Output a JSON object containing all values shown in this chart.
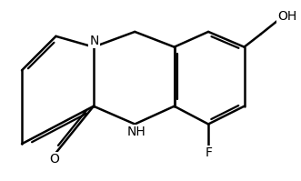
{
  "bg_color": "#ffffff",
  "line_color": "#000000",
  "line_width": 1.8,
  "font_size": 10,
  "figsize": [
    3.31,
    1.99
  ],
  "dpi": 100,
  "atoms": {
    "N": "N",
    "NH": "NH",
    "O": "O",
    "F": "F",
    "OH": "OH"
  }
}
